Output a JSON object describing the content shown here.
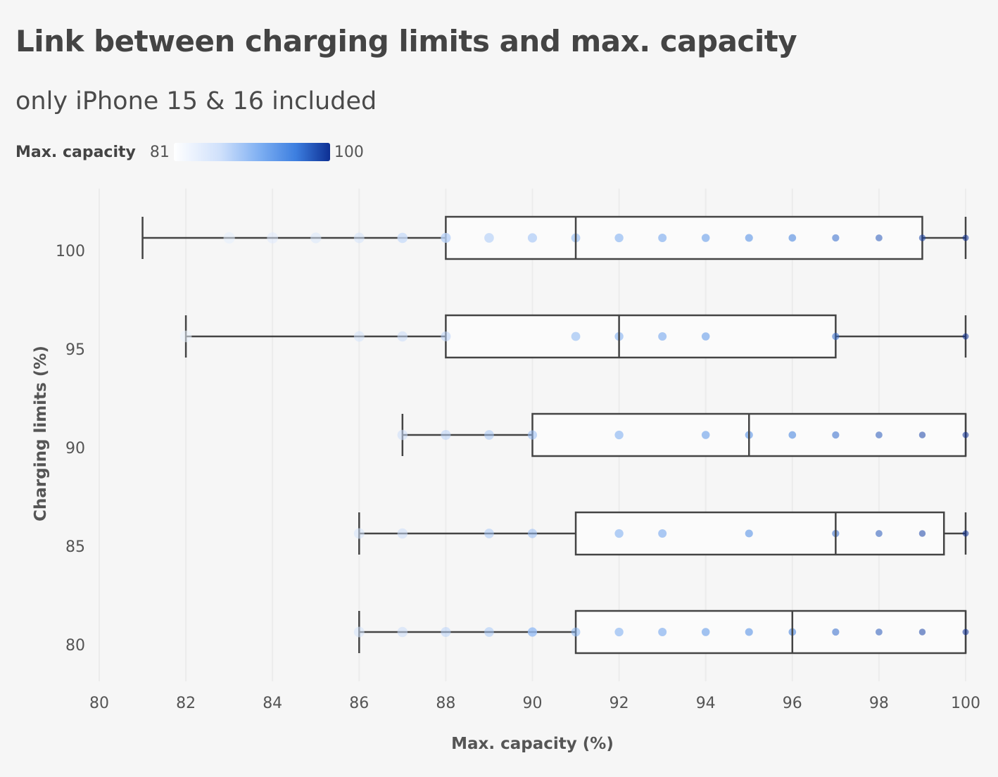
{
  "title": "Link between charging limits and max. capacity",
  "subtitle": "only iPhone 15 & 16 included",
  "legend": {
    "title": "Max. capacity",
    "min": "81",
    "max": "100"
  },
  "colors": {
    "background": "#f6f6f6",
    "box_fill": "#fbfbfb",
    "box_stroke": "#444444",
    "grid": "#ececec",
    "scale_low": "#ffffff",
    "scale_high": "#0d2f93"
  },
  "chart_data": {
    "type": "boxplot",
    "title": "Link between charging limits and max. capacity",
    "subtitle": "only iPhone 15 & 16 included",
    "xlabel": "Max. capacity (%)",
    "ylabel": "Charging limits (%)",
    "xlim": [
      80,
      100
    ],
    "xticks": [
      "80",
      "82",
      "84",
      "86",
      "88",
      "90",
      "92",
      "94",
      "96",
      "98",
      "100"
    ],
    "categories": [
      "100",
      "95",
      "90",
      "85",
      "80"
    ],
    "color_scale": {
      "variable": "Max. capacity",
      "min": 81,
      "max": 100
    },
    "series": [
      {
        "name": "100",
        "whisker_low": 81,
        "q1": 88,
        "median": 91,
        "q3": 99,
        "whisker_high": 100,
        "points": [
          83,
          84,
          85,
          86,
          87,
          87,
          88,
          88,
          89,
          90,
          91,
          92,
          93,
          94,
          95,
          96,
          97,
          98,
          99,
          100
        ]
      },
      {
        "name": "95",
        "whisker_low": 82,
        "q1": 88,
        "median": 92,
        "q3": 97,
        "whisker_high": 100,
        "points": [
          82,
          86,
          87,
          88,
          91,
          92,
          93,
          94,
          97,
          100
        ]
      },
      {
        "name": "90",
        "whisker_low": 87,
        "q1": 90,
        "median": 95,
        "q3": 100,
        "whisker_high": 100,
        "points": [
          87,
          88,
          89,
          90,
          92,
          94,
          95,
          96,
          97,
          98,
          99,
          100
        ]
      },
      {
        "name": "85",
        "whisker_low": 86,
        "q1": 91,
        "median": 97,
        "q3": 99.5,
        "whisker_high": 100,
        "points": [
          86,
          87,
          89,
          90,
          92,
          93,
          95,
          97,
          98,
          99,
          100
        ]
      },
      {
        "name": "80",
        "whisker_low": 86,
        "q1": 91,
        "median": 96,
        "q3": 100,
        "whisker_high": 100,
        "points": [
          86,
          87,
          88,
          89,
          90,
          90,
          91,
          92,
          93,
          94,
          95,
          96,
          97,
          98,
          99,
          100
        ]
      }
    ]
  }
}
